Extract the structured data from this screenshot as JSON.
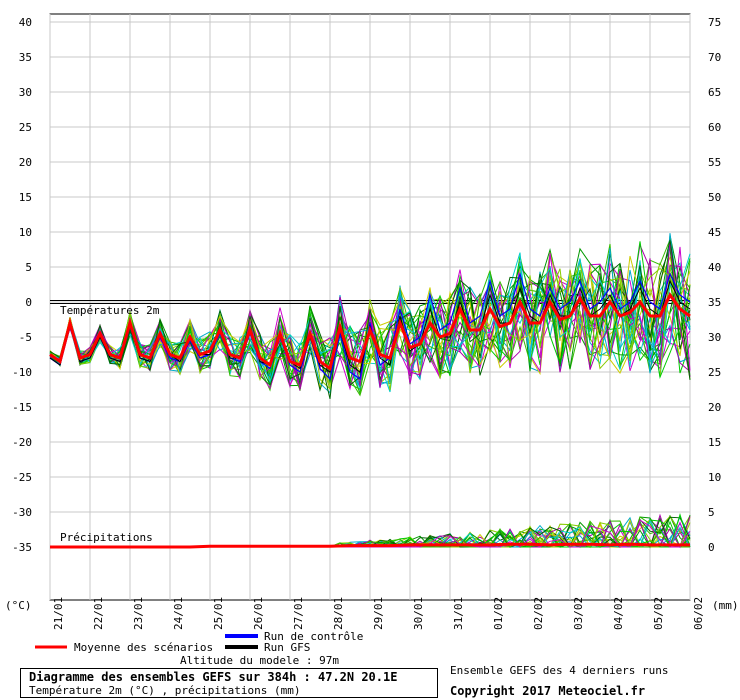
{
  "chart_data": {
    "type": "line",
    "title": "Diagramme des ensembles GEFS sur 384h : 47.2N 20.1E",
    "subtitle": "Température 2m (°C) , précipitations (mm)",
    "left_axis": {
      "unit_label": "(°C)",
      "ylim": [
        -45,
        40
      ],
      "ticks": [
        40,
        35,
        30,
        25,
        20,
        15,
        10,
        5,
        0,
        -5,
        -10,
        -15,
        -20,
        -25,
        -30,
        -35
      ]
    },
    "right_axis": {
      "unit_label": "(mm)",
      "ylim": [
        -10,
        75
      ],
      "ticks": [
        75,
        70,
        65,
        60,
        55,
        50,
        45,
        40,
        35,
        30,
        25,
        20,
        15,
        10,
        5,
        0
      ]
    },
    "x_tick_labels": [
      "21/01",
      "22/01",
      "23/01",
      "24/01",
      "25/01",
      "26/01",
      "27/01",
      "28/01",
      "29/01",
      "30/01",
      "31/01",
      "01/02",
      "02/02",
      "03/02",
      "04/02",
      "05/02",
      "06/02"
    ],
    "x_range_days": [
      0,
      16
    ],
    "grid": true,
    "panel_labels": {
      "temperature": "Températures 2m",
      "precipitation": "Précipitations"
    },
    "legend": {
      "mean": "Moyenne des scénarios",
      "control": "Run de contrôle",
      "gfs": "Run GFS"
    },
    "series_colors": {
      "mean": "#ff0000",
      "control": "#0000ff",
      "gfs": "#000000",
      "members": [
        "#00cc00",
        "#33bb00",
        "#cc00cc",
        "#00aacc",
        "#cccc00",
        "#009900",
        "#aa00aa",
        "#00cccc",
        "#88cc00",
        "#006600"
      ]
    },
    "series": [
      {
        "name": "Moyenne des scénarios",
        "x": [
          0,
          0.25,
          0.5,
          0.75,
          1,
          1.25,
          1.5,
          1.75,
          2,
          2.25,
          2.5,
          2.75,
          3,
          3.25,
          3.5,
          3.75,
          4,
          4.25,
          4.5,
          4.75,
          5,
          5.25,
          5.5,
          5.75,
          6,
          6.25,
          6.5,
          6.75,
          7,
          7.25,
          7.5,
          7.75,
          8,
          8.25,
          8.5,
          8.75,
          9,
          9.25,
          9.5,
          9.75,
          10,
          10.25,
          10.5,
          10.75,
          11,
          11.25,
          11.5,
          11.75,
          12,
          12.25,
          12.5,
          12.75,
          13,
          13.25,
          13.5,
          13.75,
          14,
          14.25,
          14.5,
          14.75,
          15,
          15.25,
          15.5,
          15.75,
          16
        ],
        "values": [
          -7.5,
          -8.5,
          -3,
          -8,
          -7.5,
          -4.5,
          -7.5,
          -8,
          -3,
          -7.5,
          -8,
          -4.5,
          -7.5,
          -8,
          -5,
          -7.5,
          -7,
          -4,
          -7.5,
          -8,
          -4,
          -8,
          -9,
          -4.5,
          -8.5,
          -9,
          -4.5,
          -8.5,
          -9.5,
          -3.5,
          -8,
          -8.5,
          -4,
          -7.5,
          -8,
          -3,
          -6.5,
          -6,
          -3,
          -5,
          -4.5,
          -1,
          -4,
          -4,
          -1,
          -3.5,
          -3,
          0,
          -3,
          -3,
          0,
          -2.5,
          -2,
          0.5,
          -2,
          -2,
          0,
          -2,
          -1.5,
          0,
          -2,
          -2,
          1,
          -1,
          -2
        ]
      },
      {
        "name": "Run de contrôle",
        "x": [
          0,
          0.25,
          0.5,
          0.75,
          1,
          1.25,
          1.5,
          1.75,
          2,
          2.25,
          2.5,
          2.75,
          3,
          3.25,
          3.5,
          3.75,
          4,
          4.25,
          4.5,
          4.75,
          5,
          5.25,
          5.5,
          5.75,
          6,
          6.25,
          6.5,
          6.75,
          7,
          7.25,
          7.5,
          7.75,
          8,
          8.25,
          8.5,
          8.75,
          9,
          9.25,
          9.5,
          9.75,
          10,
          10.25,
          10.5,
          10.75,
          11,
          11.25,
          11.5,
          11.75,
          12,
          12.25,
          12.5,
          12.75,
          13,
          13.25,
          13.5,
          13.75,
          14,
          14.25,
          14.5,
          14.75,
          15,
          15.25,
          15.5,
          15.75,
          16
        ],
        "values": [
          -8,
          -9,
          -3.5,
          -8.5,
          -8,
          -5,
          -8,
          -8.5,
          -3.5,
          -8,
          -8.5,
          -5,
          -8,
          -8.5,
          -5.5,
          -8,
          -7.5,
          -4.5,
          -8,
          -8.5,
          -4.5,
          -8.5,
          -9.5,
          -5,
          -9,
          -10,
          -5,
          -9.5,
          -11,
          -4.5,
          -10,
          -11,
          -3,
          -9,
          -8,
          -1,
          -6,
          -5,
          1,
          -4,
          -3,
          2,
          -3,
          -2,
          3,
          -2,
          -1,
          4,
          -1,
          -2,
          2,
          -1,
          0,
          3,
          -1,
          0,
          2,
          -1,
          0,
          3,
          0,
          -1,
          4,
          1,
          0
        ]
      },
      {
        "name": "Run GFS",
        "x": [
          0,
          0.25,
          0.5,
          0.75,
          1,
          1.25,
          1.5,
          1.75,
          2,
          2.25,
          2.5,
          2.75,
          3,
          3.25,
          3.5,
          3.75,
          4,
          4.25,
          4.5,
          4.75,
          5,
          5.25,
          5.5,
          5.75,
          6,
          6.25,
          6.5,
          6.75,
          7,
          7.25,
          7.5,
          7.75,
          8,
          8.25,
          8.5,
          8.75,
          9,
          9.25,
          9.5,
          9.75,
          10,
          10.25,
          10.5,
          10.75,
          11,
          11.25,
          11.5,
          11.75,
          12,
          12.25,
          12.5,
          12.75,
          13,
          13.25,
          13.5,
          13.75,
          14,
          14.25,
          14.5,
          14.75,
          15,
          15.25,
          15.5,
          15.75,
          16
        ],
        "values": [
          -8,
          -9,
          -3,
          -8.5,
          -8,
          -5,
          -8,
          -8.5,
          -3.5,
          -8,
          -8.5,
          -4.5,
          -7.5,
          -8.5,
          -5,
          -7.5,
          -7.5,
          -4,
          -8,
          -8,
          -4,
          -8.5,
          -9,
          -4.5,
          -8.5,
          -9.5,
          -5,
          -9,
          -10,
          -4,
          -9,
          -10,
          -3.5,
          -8,
          -9,
          -2,
          -7,
          -6,
          -1,
          -5,
          -5,
          0,
          -4,
          -4,
          1,
          -3,
          -3,
          2,
          -2,
          -3,
          1,
          -2,
          -2,
          2,
          -2,
          -1,
          1,
          -2,
          -1,
          2,
          -1,
          -2,
          3,
          0,
          -1
        ]
      }
    ],
    "precipitation_mean_mm": [
      0,
      0,
      0,
      0,
      0,
      0,
      0,
      0,
      0.1,
      0.1,
      0.1,
      0.1,
      0.1,
      0.1,
      0.1,
      0.2,
      0.2,
      0.2,
      0.3,
      0.3,
      0.3,
      0.3,
      0.3,
      0.4,
      0.4,
      0.3,
      0.4,
      0.4,
      0.3,
      0.4,
      0.3,
      0.3,
      0.3
    ]
  },
  "footer": {
    "altitude": "Altitude du modele : 97m",
    "ensemble_note": "Ensemble GEFS des 4 derniers runs",
    "copyright": "Copyright 2017 Meteociel.fr"
  }
}
